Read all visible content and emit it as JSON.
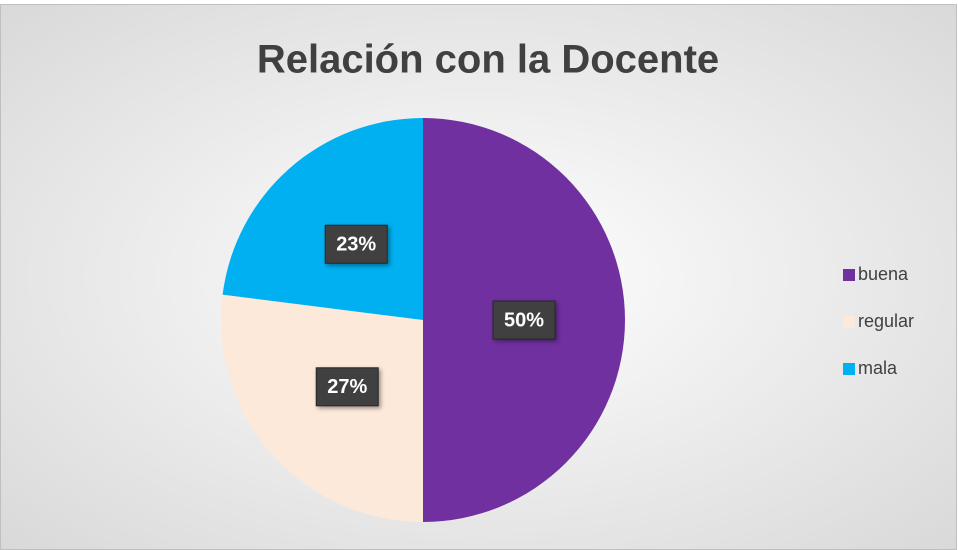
{
  "chart_data": {
    "type": "pie",
    "title": "Relación con la Docente",
    "categories": [
      "buena",
      "regular",
      "mala"
    ],
    "values": [
      50,
      27,
      23
    ],
    "value_labels": [
      "50%",
      "27%",
      "23%"
    ],
    "colors": [
      "#7030a0",
      "#fde9d9",
      "#00b0f0"
    ],
    "legend": "right"
  }
}
